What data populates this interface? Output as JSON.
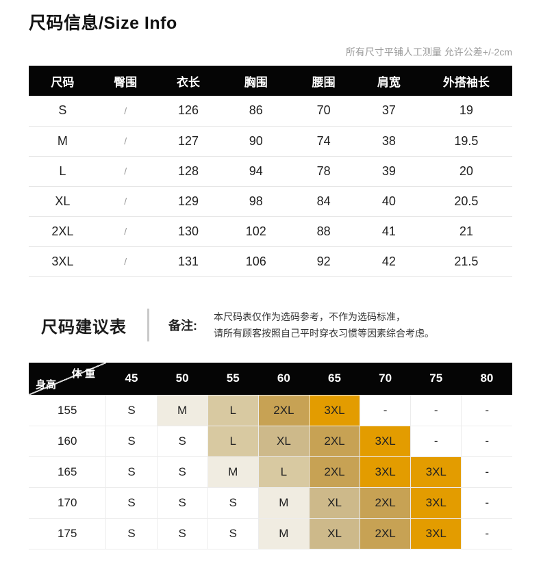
{
  "page": {
    "title": "尺码信息/Size Info",
    "tolerance_note": "所有尺寸平铺人工测量 允许公差+/-2cm"
  },
  "size_table": {
    "headers": [
      "尺码",
      "臀围",
      "衣长",
      "胸围",
      "腰围",
      "肩宽",
      "外搭袖长"
    ],
    "rows": [
      [
        "S",
        "/",
        "126",
        "86",
        "70",
        "37",
        "19"
      ],
      [
        "M",
        "/",
        "127",
        "90",
        "74",
        "38",
        "19.5"
      ],
      [
        "L",
        "/",
        "128",
        "94",
        "78",
        "39",
        "20"
      ],
      [
        "XL",
        "/",
        "129",
        "98",
        "84",
        "40",
        "20.5"
      ],
      [
        "2XL",
        "/",
        "130",
        "102",
        "88",
        "41",
        "21"
      ],
      [
        "3XL",
        "/",
        "131",
        "106",
        "92",
        "42",
        "21.5"
      ]
    ]
  },
  "suggestion": {
    "heading": "尺码建议表",
    "note_label": "备注:",
    "note_lines": [
      "本尺码表仅作为选码参考，不作为选码标准，",
      "请所有顾客按照自己平时穿衣习惯等因素综合考虑。"
    ]
  },
  "matrix_table": {
    "corner": {
      "top": "体 重",
      "bottom": "身高"
    },
    "weight_headers": [
      "45",
      "50",
      "55",
      "60",
      "65",
      "70",
      "75",
      "80"
    ],
    "rows": [
      {
        "height": "155",
        "cells": [
          "S",
          "M",
          "L",
          "2XL",
          "3XL",
          "-",
          "-",
          "-"
        ]
      },
      {
        "height": "160",
        "cells": [
          "S",
          "S",
          "L",
          "XL",
          "2XL",
          "3XL",
          "-",
          "-"
        ]
      },
      {
        "height": "165",
        "cells": [
          "S",
          "S",
          "M",
          "L",
          "2XL",
          "3XL",
          "3XL",
          "-"
        ]
      },
      {
        "height": "170",
        "cells": [
          "S",
          "S",
          "S",
          "M",
          "XL",
          "2XL",
          "3XL",
          "-"
        ]
      },
      {
        "height": "175",
        "cells": [
          "S",
          "S",
          "S",
          "M",
          "XL",
          "2XL",
          "3XL",
          "-"
        ]
      }
    ],
    "cell_colors": {
      "S": "#ffffff",
      "M": "#f0ece1",
      "L": "#d8c9a1",
      "XL": "#cdb98a",
      "2XL": "#c7a254",
      "3XL": "#e39c00",
      "-": "#ffffff"
    }
  },
  "colors": {
    "header_bg": "#050505",
    "header_text": "#ffffff",
    "row_border": "#e6e6e6",
    "accent_orange": "#e39c00",
    "muted_text": "#9b9b9b"
  }
}
